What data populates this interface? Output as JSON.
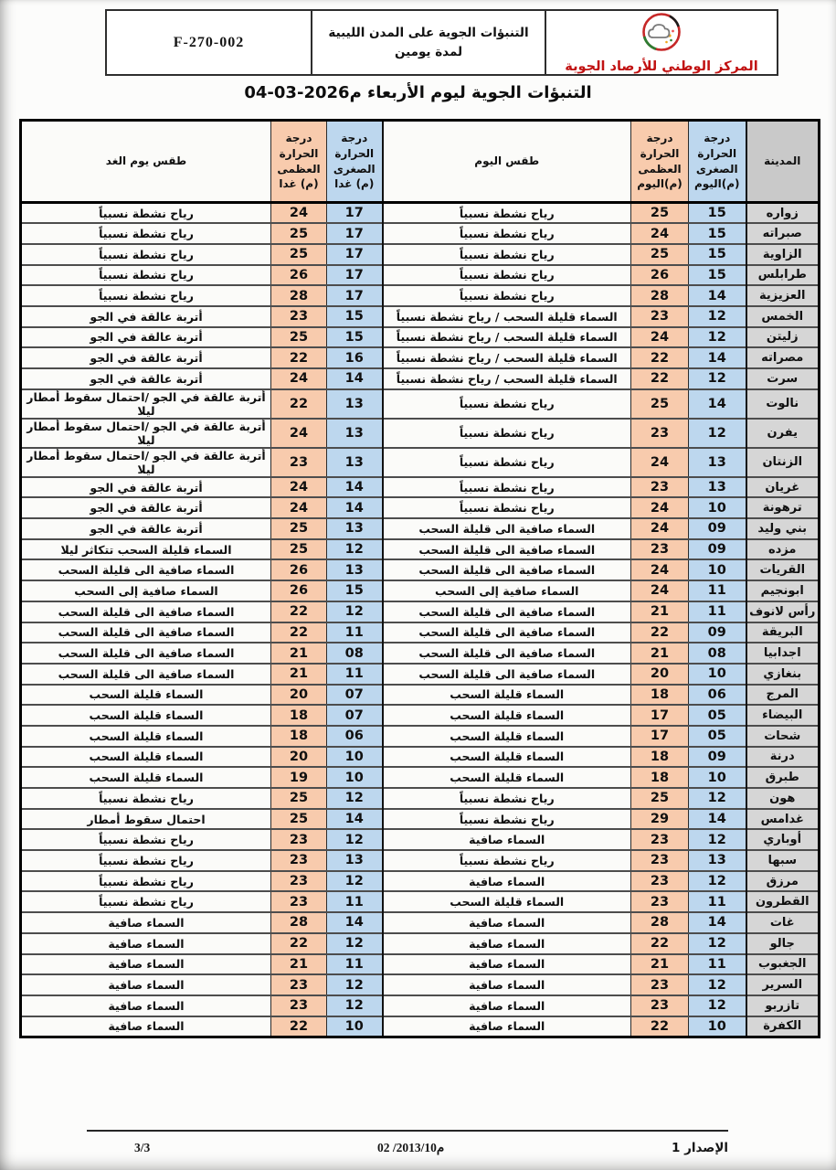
{
  "form_header": {
    "code": "F-270-002",
    "subject_line1": "التنبؤات الجوية على المدن الليبية",
    "subject_line2": "لمدة يومين",
    "org_name": "المركز الوطني للأرصاد الجوية",
    "org_color": "#c11212",
    "logo": "cloud-sun-ring-logo"
  },
  "title": {
    "text": "التنبؤات الجوية ليوم الأربعاء",
    "date_display": "م2026-03-04"
  },
  "table": {
    "headers": {
      "city": "المدينة",
      "today_min": "درجة الحرارة الصغرى (م)اليوم",
      "today_max": "درجة الحرارة العظمى (م)اليوم",
      "today_weather": "طقس اليوم",
      "tomorrow_min": "درجة الحرارة الصغرى (م) غدا",
      "tomorrow_max": "درجة الحرارة العظمى (م) غدا",
      "tomorrow_weather": "طقس يوم الغد"
    },
    "colors": {
      "min_bg": "#bdd7ee",
      "max_bg": "#f8cbad",
      "city_bg": "#d6d6d6",
      "city_header_bg": "#c9c9c9",
      "weather_bg": "#fbfbf9"
    },
    "rows": [
      {
        "city": "زواره",
        "today_min": "15",
        "today_max": "25",
        "today_weather": "رياح نشطة نسبياً",
        "tomorrow_min": "17",
        "tomorrow_max": "24",
        "tomorrow_weather": "رياح نشطة نسبياً"
      },
      {
        "city": "صبراته",
        "today_min": "15",
        "today_max": "24",
        "today_weather": "رياح نشطة نسبياً",
        "tomorrow_min": "17",
        "tomorrow_max": "25",
        "tomorrow_weather": "رياح نشطة نسبياً"
      },
      {
        "city": "الزاوية",
        "today_min": "15",
        "today_max": "25",
        "today_weather": "رياح نشطة نسبياً",
        "tomorrow_min": "17",
        "tomorrow_max": "25",
        "tomorrow_weather": "رياح نشطة نسبياً"
      },
      {
        "city": "طرابلس",
        "today_min": "15",
        "today_max": "26",
        "today_weather": "رياح نشطة نسبياً",
        "tomorrow_min": "17",
        "tomorrow_max": "26",
        "tomorrow_weather": "رياح نشطة نسبياً"
      },
      {
        "city": "العزيزية",
        "today_min": "14",
        "today_max": "28",
        "today_weather": "رياح نشطة نسبياً",
        "tomorrow_min": "17",
        "tomorrow_max": "28",
        "tomorrow_weather": "رياح نشطة نسبياً"
      },
      {
        "city": "الخمس",
        "today_min": "12",
        "today_max": "23",
        "today_weather": "السماء قليلة السحب / رياح نشطة نسبياً",
        "tomorrow_min": "15",
        "tomorrow_max": "23",
        "tomorrow_weather": "أتربة عالقة في الجو"
      },
      {
        "city": "زليتن",
        "today_min": "12",
        "today_max": "24",
        "today_weather": "السماء قليلة السحب / رياح نشطة نسبياً",
        "tomorrow_min": "15",
        "tomorrow_max": "25",
        "tomorrow_weather": "أتربة عالقة في الجو"
      },
      {
        "city": "مصراته",
        "today_min": "14",
        "today_max": "22",
        "today_weather": "السماء قليلة السحب / رياح نشطة نسبياً",
        "tomorrow_min": "16",
        "tomorrow_max": "22",
        "tomorrow_weather": "أتربة عالقة في الجو"
      },
      {
        "city": "سرت",
        "today_min": "12",
        "today_max": "22",
        "today_weather": "السماء قليلة السحب / رياح نشطة نسبياً",
        "tomorrow_min": "14",
        "tomorrow_max": "24",
        "tomorrow_weather": "أتربة عالقة في الجو"
      },
      {
        "city": "نالوت",
        "today_min": "14",
        "today_max": "25",
        "today_weather": "رياح نشطة نسبياً",
        "tomorrow_min": "13",
        "tomorrow_max": "22",
        "tomorrow_weather": "أتربة عالقة في الجو /احتمال سقوط أمطار ليلا"
      },
      {
        "city": "يفرن",
        "today_min": "12",
        "today_max": "23",
        "today_weather": "رياح نشطة نسبياً",
        "tomorrow_min": "13",
        "tomorrow_max": "24",
        "tomorrow_weather": "أتربة عالقة في الجو /احتمال سقوط أمطار ليلا"
      },
      {
        "city": "الزنتان",
        "today_min": "13",
        "today_max": "24",
        "today_weather": "رياح نشطة نسبياً",
        "tomorrow_min": "13",
        "tomorrow_max": "23",
        "tomorrow_weather": "أتربة عالقة في الجو /احتمال سقوط أمطار ليلا"
      },
      {
        "city": "غريان",
        "today_min": "13",
        "today_max": "23",
        "today_weather": "رياح نشطة نسبياً",
        "tomorrow_min": "14",
        "tomorrow_max": "24",
        "tomorrow_weather": "أتربة عالقة في الجو"
      },
      {
        "city": "ترهونة",
        "today_min": "10",
        "today_max": "24",
        "today_weather": "رياح نشطة نسبياً",
        "tomorrow_min": "14",
        "tomorrow_max": "24",
        "tomorrow_weather": "أتربة عالقة في الجو"
      },
      {
        "city": "بني وليد",
        "today_min": "09",
        "today_max": "24",
        "today_weather": "السماء صافية الى قليلة السحب",
        "tomorrow_min": "13",
        "tomorrow_max": "25",
        "tomorrow_weather": "أتربة عالقة في الجو"
      },
      {
        "city": "مزده",
        "today_min": "09",
        "today_max": "23",
        "today_weather": "السماء صافية الى قليلة السحب",
        "tomorrow_min": "12",
        "tomorrow_max": "25",
        "tomorrow_weather": "السماء قليلة السحب تتكاثر ليلا"
      },
      {
        "city": "القريات",
        "today_min": "10",
        "today_max": "24",
        "today_weather": "السماء صافية الى قليلة السحب",
        "tomorrow_min": "13",
        "tomorrow_max": "26",
        "tomorrow_weather": "السماء صافية الى قليلة السحب"
      },
      {
        "city": "ابونجيم",
        "today_min": "11",
        "today_max": "24",
        "today_weather": "السماء صافية إلى السحب",
        "tomorrow_min": "15",
        "tomorrow_max": "26",
        "tomorrow_weather": "السماء صافية إلى السحب"
      },
      {
        "city": "رأس لانوف",
        "today_min": "11",
        "today_max": "21",
        "today_weather": "السماء صافية الى قليلة السحب",
        "tomorrow_min": "12",
        "tomorrow_max": "22",
        "tomorrow_weather": "السماء صافية الى قليلة السحب"
      },
      {
        "city": "البريقة",
        "today_min": "09",
        "today_max": "22",
        "today_weather": "السماء صافية الى قليلة السحب",
        "tomorrow_min": "11",
        "tomorrow_max": "22",
        "tomorrow_weather": "السماء صافية الى قليلة السحب"
      },
      {
        "city": "اجدابيا",
        "today_min": "08",
        "today_max": "21",
        "today_weather": "السماء صافية الى قليلة السحب",
        "tomorrow_min": "08",
        "tomorrow_max": "21",
        "tomorrow_weather": "السماء صافية الى قليلة السحب"
      },
      {
        "city": "بنغازي",
        "today_min": "10",
        "today_max": "20",
        "today_weather": "السماء صافية الى قليلة السحب",
        "tomorrow_min": "11",
        "tomorrow_max": "21",
        "tomorrow_weather": "السماء صافية الى قليلة السحب"
      },
      {
        "city": "المرج",
        "today_min": "06",
        "today_max": "18",
        "today_weather": "السماء قليلة السحب",
        "tomorrow_min": "07",
        "tomorrow_max": "20",
        "tomorrow_weather": "السماء قليلة السحب"
      },
      {
        "city": "البيضاء",
        "today_min": "05",
        "today_max": "17",
        "today_weather": "السماء قليلة السحب",
        "tomorrow_min": "07",
        "tomorrow_max": "18",
        "tomorrow_weather": "السماء قليلة السحب"
      },
      {
        "city": "شحات",
        "today_min": "05",
        "today_max": "17",
        "today_weather": "السماء قليلة السحب",
        "tomorrow_min": "06",
        "tomorrow_max": "18",
        "tomorrow_weather": "السماء قليلة السحب"
      },
      {
        "city": "درنة",
        "today_min": "09",
        "today_max": "18",
        "today_weather": "السماء قليلة السحب",
        "tomorrow_min": "10",
        "tomorrow_max": "20",
        "tomorrow_weather": "السماء قليلة السحب"
      },
      {
        "city": "طبرق",
        "today_min": "10",
        "today_max": "18",
        "today_weather": "السماء قليلة السحب",
        "tomorrow_min": "10",
        "tomorrow_max": "19",
        "tomorrow_weather": "السماء قليلة السحب"
      },
      {
        "city": "هون",
        "today_min": "12",
        "today_max": "25",
        "today_weather": "رياح نشطة نسبياً",
        "tomorrow_min": "12",
        "tomorrow_max": "25",
        "tomorrow_weather": "رياح نشطة نسبياً"
      },
      {
        "city": "غدامس",
        "today_min": "14",
        "today_max": "29",
        "today_weather": "رياح نشطة نسبياً",
        "tomorrow_min": "14",
        "tomorrow_max": "25",
        "tomorrow_weather": "احتمال سقوط أمطار"
      },
      {
        "city": "أوباري",
        "today_min": "12",
        "today_max": "23",
        "today_weather": "السماء صافية",
        "tomorrow_min": "12",
        "tomorrow_max": "23",
        "tomorrow_weather": "رياح نشطة نسبياً"
      },
      {
        "city": "سبها",
        "today_min": "13",
        "today_max": "23",
        "today_weather": "رياح نشطة نسبياً",
        "tomorrow_min": "13",
        "tomorrow_max": "23",
        "tomorrow_weather": "رياح نشطة نسبياً"
      },
      {
        "city": "مرزق",
        "today_min": "12",
        "today_max": "23",
        "today_weather": "السماء صافية",
        "tomorrow_min": "12",
        "tomorrow_max": "23",
        "tomorrow_weather": "رياح نشطة نسبياً"
      },
      {
        "city": "القطرون",
        "today_min": "11",
        "today_max": "23",
        "today_weather": "السماء قليلة السحب",
        "tomorrow_min": "11",
        "tomorrow_max": "23",
        "tomorrow_weather": "رياح نشطة نسبياً"
      },
      {
        "city": "غات",
        "today_min": "14",
        "today_max": "28",
        "today_weather": "السماء صافية",
        "tomorrow_min": "14",
        "tomorrow_max": "28",
        "tomorrow_weather": "السماء صافية"
      },
      {
        "city": "جالو",
        "today_min": "12",
        "today_max": "22",
        "today_weather": "السماء صافية",
        "tomorrow_min": "12",
        "tomorrow_max": "22",
        "tomorrow_weather": "السماء صافية"
      },
      {
        "city": "الجغبوب",
        "today_min": "11",
        "today_max": "21",
        "today_weather": "السماء صافية",
        "tomorrow_min": "11",
        "tomorrow_max": "21",
        "tomorrow_weather": "السماء صافية"
      },
      {
        "city": "السرير",
        "today_min": "12",
        "today_max": "23",
        "today_weather": "السماء صافية",
        "tomorrow_min": "12",
        "tomorrow_max": "23",
        "tomorrow_weather": "السماء صافية"
      },
      {
        "city": "تازربو",
        "today_min": "12",
        "today_max": "23",
        "today_weather": "السماء صافية",
        "tomorrow_min": "12",
        "tomorrow_max": "23",
        "tomorrow_weather": "السماء صافية"
      },
      {
        "city": "الكفرة",
        "today_min": "10",
        "today_max": "22",
        "today_weather": "السماء صافية",
        "tomorrow_min": "10",
        "tomorrow_max": "22",
        "tomorrow_weather": "السماء صافية"
      }
    ]
  },
  "footer": {
    "version": "الإصدار 1",
    "date_display": "م2013/10/ 02",
    "page_number": "3/3"
  }
}
